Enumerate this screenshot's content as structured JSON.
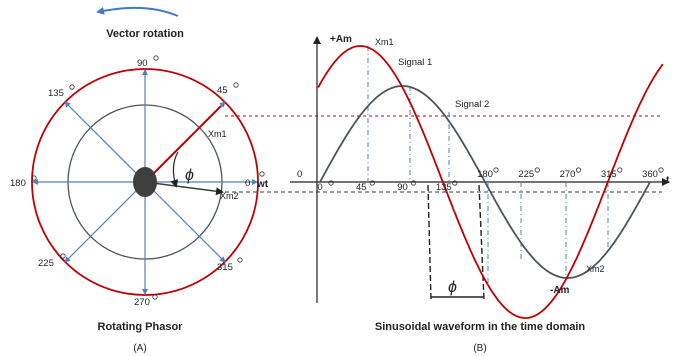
{
  "panel_a": {
    "title": "Vector rotation",
    "caption": "Rotating Phasor",
    "label": "(A)",
    "angles": {
      "a90": "90",
      "a45": "45",
      "a135": "135",
      "a180": "180",
      "a0": "0",
      "a225": "225",
      "a315": "315",
      "a270": "270"
    },
    "wt": "wt",
    "phi": "ϕ",
    "xm1": "Xm1",
    "xm2": "Xm2",
    "colors": {
      "outer": "#c00000",
      "inner": "#4a5560",
      "spokes": "#4f81bd",
      "hub": "#3f3f3f"
    }
  },
  "panel_b": {
    "caption": "Sinusoidal waveform in the time domain",
    "label": "(B)",
    "plus_am": "+Am",
    "minus_am": "-Am",
    "xm1": "Xm1",
    "xm2": "Xm2",
    "signal1": "Signal  1",
    "signal2": "Signal  2",
    "zero": "0",
    "phi": "ϕ",
    "t": "t",
    "ticks": [
      "0",
      "45",
      "90",
      "135",
      "180",
      "225",
      "270",
      "315",
      "360"
    ],
    "colors": {
      "signal1": "#c00000",
      "signal2": "#4a5560",
      "guides": "#4f81bd"
    }
  }
}
